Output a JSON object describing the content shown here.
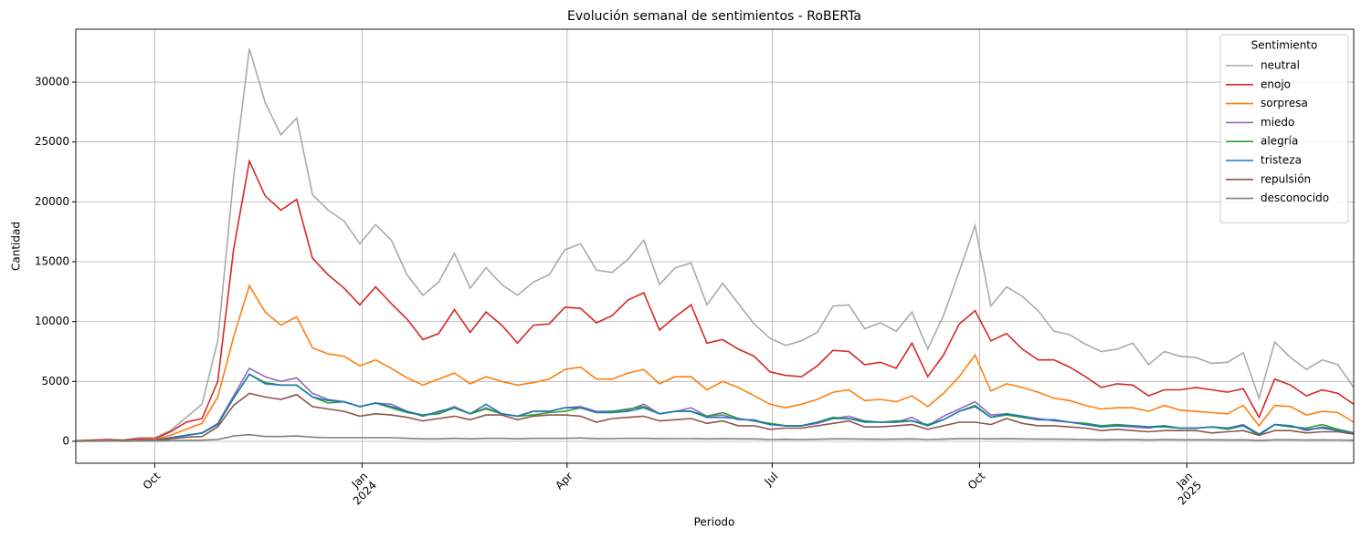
{
  "chart_data": {
    "type": "line",
    "title": "Evolución semanal de sentimientos - RoBERTa",
    "xlabel": "Periodo",
    "ylabel": "Cantidad",
    "legend_title": "Sentimiento",
    "legend": "upper right",
    "grid": true,
    "x": [
      "2023-08-27",
      "2023-09-03",
      "2023-09-10",
      "2023-09-17",
      "2023-09-24",
      "2023-10-01",
      "2023-10-08",
      "2023-10-15",
      "2023-10-22",
      "2023-10-29",
      "2023-11-05",
      "2023-11-12",
      "2023-11-19",
      "2023-11-26",
      "2023-12-03",
      "2023-12-10",
      "2023-12-17",
      "2023-12-24",
      "2023-12-31",
      "2024-01-07",
      "2024-01-14",
      "2024-01-21",
      "2024-01-28",
      "2024-02-04",
      "2024-02-11",
      "2024-02-18",
      "2024-02-25",
      "2024-03-03",
      "2024-03-10",
      "2024-03-17",
      "2024-03-24",
      "2024-03-31",
      "2024-04-07",
      "2024-04-14",
      "2024-04-21",
      "2024-04-28",
      "2024-05-05",
      "2024-05-12",
      "2024-05-19",
      "2024-05-26",
      "2024-06-02",
      "2024-06-09",
      "2024-06-16",
      "2024-06-23",
      "2024-06-30",
      "2024-07-07",
      "2024-07-14",
      "2024-07-21",
      "2024-07-28",
      "2024-08-04",
      "2024-08-11",
      "2024-08-18",
      "2024-08-25",
      "2024-09-01",
      "2024-09-08",
      "2024-09-15",
      "2024-09-22",
      "2024-09-29",
      "2024-10-06",
      "2024-10-13",
      "2024-10-20",
      "2024-10-27",
      "2024-11-03",
      "2024-11-10",
      "2024-11-17",
      "2024-11-24",
      "2024-12-01",
      "2024-12-08",
      "2024-12-15",
      "2024-12-22",
      "2024-12-29",
      "2025-01-05",
      "2025-01-12",
      "2025-01-19",
      "2025-01-26",
      "2025-02-02",
      "2025-02-09",
      "2025-02-16",
      "2025-02-23",
      "2025-03-02",
      "2025-03-09",
      "2025-03-16"
    ],
    "xlim": [
      "2023-08-27",
      "2025-03-16"
    ],
    "xticks": [
      {
        "value": "2023-10-01",
        "label": "Oct"
      },
      {
        "value": "2024-01-01",
        "label": "Jan\n2024"
      },
      {
        "value": "2024-04-01",
        "label": "Apr"
      },
      {
        "value": "2024-07-01",
        "label": "Jul"
      },
      {
        "value": "2024-10-01",
        "label": "Oct"
      },
      {
        "value": "2025-01-01",
        "label": "Jan\n2025"
      }
    ],
    "ylim": [
      -1830,
      34420
    ],
    "yticks": [
      0,
      5000,
      10000,
      15000,
      20000,
      25000,
      30000
    ],
    "series": [
      {
        "name": "neutral",
        "color": "#aaaaaa",
        "values": [
          50,
          100,
          150,
          100,
          300,
          300,
          900,
          2000,
          3100,
          8400,
          22000,
          32800,
          28300,
          25600,
          27000,
          20600,
          19300,
          18400,
          16500,
          18100,
          16800,
          13900,
          12200,
          13300,
          15700,
          12800,
          14500,
          13100,
          12200,
          13300,
          13900,
          16000,
          16500,
          14300,
          14100,
          15200,
          16800,
          13100,
          14500,
          14900,
          11400,
          13200,
          11500,
          9800,
          8600,
          8000,
          8400,
          9100,
          11300,
          11400,
          9400,
          9900,
          9200,
          10800,
          7700,
          10500,
          14200,
          18000,
          11300,
          12900,
          12100,
          10900,
          9200,
          8900,
          8100,
          7500,
          7700,
          8200,
          6400,
          7500,
          7100,
          7000,
          6500,
          6600,
          7400,
          3600,
          8300,
          7000,
          6000,
          6800,
          6400,
          4500
        ]
      },
      {
        "name": "enojo",
        "color": "#d62728",
        "values": [
          50,
          100,
          150,
          100,
          200,
          200,
          800,
          1600,
          1900,
          5000,
          16000,
          23400,
          20500,
          19300,
          20200,
          15300,
          13900,
          12800,
          11400,
          12900,
          11500,
          10200,
          8500,
          9000,
          11000,
          9100,
          10800,
          9700,
          8200,
          9700,
          9800,
          11200,
          11100,
          9900,
          10500,
          11800,
          12400,
          9300,
          10400,
          11400,
          8200,
          8500,
          7700,
          7100,
          5800,
          5500,
          5400,
          6300,
          7600,
          7500,
          6400,
          6600,
          6100,
          8200,
          5400,
          7200,
          9800,
          10900,
          8400,
          9000,
          7700,
          6800,
          6800,
          6200,
          5400,
          4500,
          4800,
          4700,
          3800,
          4300,
          4300,
          4500,
          4300,
          4100,
          4400,
          2000,
          5200,
          4700,
          3800,
          4300,
          4000,
          3100
        ]
      },
      {
        "name": "sorpresa",
        "color": "#ff7f0e",
        "values": [
          30,
          50,
          80,
          50,
          100,
          150,
          500,
          1000,
          1500,
          3700,
          8700,
          13000,
          10800,
          9700,
          10400,
          7800,
          7300,
          7100,
          6300,
          6800,
          6100,
          5300,
          4700,
          5200,
          5700,
          4800,
          5400,
          5000,
          4700,
          4900,
          5200,
          6000,
          6200,
          5200,
          5200,
          5700,
          6000,
          4800,
          5400,
          5400,
          4300,
          5000,
          4500,
          3800,
          3100,
          2800,
          3100,
          3500,
          4100,
          4300,
          3400,
          3500,
          3300,
          3800,
          2900,
          4000,
          5400,
          7200,
          4200,
          4800,
          4500,
          4100,
          3600,
          3400,
          3000,
          2700,
          2800,
          2800,
          2500,
          3000,
          2600,
          2500,
          2400,
          2300,
          3000,
          1300,
          3000,
          2900,
          2200,
          2500,
          2400,
          1600
        ]
      },
      {
        "name": "miedo",
        "color": "#9467bd",
        "values": [
          20,
          30,
          50,
          30,
          50,
          80,
          300,
          500,
          700,
          1500,
          3800,
          6100,
          5400,
          5000,
          5300,
          4000,
          3500,
          3300,
          2900,
          3200,
          3100,
          2500,
          2200,
          2400,
          2900,
          2300,
          2800,
          2300,
          2100,
          2500,
          2500,
          2800,
          2900,
          2500,
          2500,
          2600,
          3100,
          2300,
          2500,
          2800,
          2100,
          2200,
          1800,
          1800,
          1400,
          1300,
          1300,
          1500,
          1900,
          2100,
          1700,
          1600,
          1600,
          2000,
          1300,
          2100,
          2700,
          3300,
          2200,
          2300,
          2100,
          1900,
          1700,
          1600,
          1500,
          1300,
          1300,
          1200,
          1100,
          1300,
          1100,
          1100,
          1200,
          1100,
          1400,
          600,
          1400,
          1300,
          900,
          1200,
          1000,
          700
        ]
      },
      {
        "name": "alegría",
        "color": "#2ca02c",
        "values": [
          20,
          30,
          50,
          30,
          50,
          80,
          300,
          500,
          700,
          1400,
          3600,
          5600,
          4900,
          4700,
          4700,
          3700,
          3200,
          3300,
          2900,
          3200,
          2800,
          2400,
          2200,
          2300,
          2800,
          2300,
          2700,
          2300,
          2100,
          2200,
          2400,
          2500,
          2800,
          2400,
          2500,
          2700,
          2900,
          2300,
          2500,
          2500,
          2100,
          2400,
          1900,
          1700,
          1500,
          1300,
          1300,
          1600,
          2000,
          1900,
          1700,
          1600,
          1700,
          1700,
          1400,
          1800,
          2500,
          3000,
          2000,
          2200,
          2000,
          1800,
          1800,
          1600,
          1500,
          1300,
          1400,
          1300,
          1200,
          1200,
          1100,
          1100,
          1200,
          1000,
          1300,
          500,
          1400,
          1200,
          1100,
          1400,
          1000,
          700
        ]
      },
      {
        "name": "tristeza",
        "color": "#1f77b4",
        "values": [
          20,
          30,
          50,
          30,
          50,
          80,
          300,
          500,
          700,
          1400,
          3600,
          5600,
          4800,
          4700,
          4700,
          3700,
          3400,
          3300,
          2900,
          3200,
          2900,
          2500,
          2100,
          2500,
          2800,
          2300,
          3100,
          2300,
          2100,
          2500,
          2500,
          2800,
          2800,
          2400,
          2400,
          2500,
          2800,
          2300,
          2500,
          2500,
          2000,
          2000,
          1900,
          1700,
          1400,
          1300,
          1300,
          1600,
          1900,
          1900,
          1600,
          1600,
          1600,
          1700,
          1300,
          1800,
          2500,
          2900,
          2000,
          2300,
          2100,
          1800,
          1800,
          1600,
          1400,
          1200,
          1300,
          1300,
          1200,
          1300,
          1100,
          1100,
          1200,
          1100,
          1300,
          600,
          1400,
          1300,
          1000,
          1100,
          900,
          700
        ]
      },
      {
        "name": "repulsión",
        "color": "#8c564b",
        "values": [
          10,
          20,
          30,
          20,
          30,
          50,
          200,
          350,
          400,
          1200,
          3000,
          4000,
          3700,
          3500,
          3900,
          2900,
          2700,
          2500,
          2100,
          2300,
          2200,
          2000,
          1700,
          1900,
          2100,
          1800,
          2200,
          2200,
          1800,
          2100,
          2200,
          2200,
          2100,
          1600,
          1900,
          2000,
          2100,
          1700,
          1800,
          1900,
          1500,
          1700,
          1300,
          1300,
          1000,
          1100,
          1100,
          1300,
          1500,
          1700,
          1200,
          1200,
          1300,
          1400,
          1000,
          1300,
          1600,
          1600,
          1400,
          1900,
          1500,
          1300,
          1300,
          1200,
          1100,
          900,
          1000,
          900,
          800,
          900,
          900,
          900,
          700,
          800,
          900,
          500,
          900,
          900,
          700,
          800,
          800,
          600
        ]
      },
      {
        "name": "desconocido",
        "color": "#7f7f7f",
        "values": [
          0,
          10,
          20,
          10,
          20,
          30,
          50,
          80,
          100,
          150,
          450,
          550,
          400,
          400,
          450,
          350,
          300,
          300,
          300,
          300,
          300,
          250,
          200,
          200,
          250,
          200,
          250,
          250,
          200,
          250,
          250,
          250,
          280,
          220,
          230,
          250,
          250,
          220,
          230,
          230,
          200,
          220,
          200,
          200,
          150,
          170,
          150,
          170,
          200,
          200,
          180,
          170,
          180,
          200,
          150,
          180,
          220,
          230,
          200,
          220,
          200,
          180,
          180,
          170,
          150,
          130,
          140,
          140,
          120,
          140,
          130,
          130,
          130,
          120,
          130,
          80,
          130,
          130,
          110,
          120,
          110,
          90
        ]
      }
    ]
  }
}
